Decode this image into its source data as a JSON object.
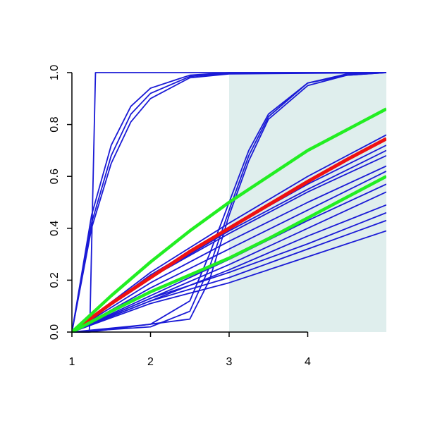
{
  "chart_data": {
    "type": "line",
    "xlim": [
      1,
      5
    ],
    "ylim": [
      0,
      1
    ],
    "xticks": [
      1,
      2,
      3,
      4
    ],
    "yticks": [
      {
        "value": 0,
        "label": "0.0"
      },
      {
        "value": 0.2,
        "label": "0.2"
      },
      {
        "value": 0.4,
        "label": "0.4"
      },
      {
        "value": 0.6,
        "label": "0.6"
      },
      {
        "value": 0.8,
        "label": "0.8"
      },
      {
        "value": 1,
        "label": "1.0"
      }
    ],
    "shaded_region": {
      "x": [
        3,
        5
      ],
      "color": "#dfeeed"
    },
    "series": [
      {
        "color": "#1a1ad6",
        "line_width": 1.8,
        "x": [
          1,
          1.22,
          1.23,
          1.3,
          5
        ],
        "values": [
          0,
          0,
          0.05,
          1,
          1
        ]
      },
      {
        "color": "#1a1ad6",
        "line_width": 1.8,
        "x": [
          1,
          1.25,
          1.5,
          1.75,
          2,
          2.5,
          3,
          5
        ],
        "values": [
          0,
          0.45,
          0.72,
          0.87,
          0.94,
          0.99,
          1,
          1
        ]
      },
      {
        "color": "#1a1ad6",
        "line_width": 1.8,
        "x": [
          1,
          1.25,
          1.5,
          1.75,
          2,
          2.5,
          3,
          5
        ],
        "values": [
          0,
          0.42,
          0.68,
          0.84,
          0.92,
          0.985,
          0.997,
          1
        ]
      },
      {
        "color": "#1a1ad6",
        "line_width": 1.8,
        "x": [
          1,
          1.25,
          1.5,
          1.75,
          2,
          2.5,
          3,
          5
        ],
        "values": [
          0,
          0.4,
          0.65,
          0.81,
          0.9,
          0.98,
          0.995,
          1
        ]
      },
      {
        "color": "#1a1ad6",
        "line_width": 1.8,
        "x": [
          1,
          2,
          2.5,
          2.75,
          3,
          3.25,
          3.5,
          4,
          4.5,
          5
        ],
        "values": [
          0,
          0.03,
          0.12,
          0.3,
          0.5,
          0.7,
          0.84,
          0.96,
          0.995,
          1
        ]
      },
      {
        "color": "#1a1ad6",
        "line_width": 1.8,
        "x": [
          1,
          2,
          2.5,
          2.75,
          3,
          3.25,
          3.5,
          4,
          4.5,
          5
        ],
        "values": [
          0,
          0.02,
          0.08,
          0.25,
          0.47,
          0.68,
          0.83,
          0.96,
          0.99,
          1
        ]
      },
      {
        "color": "#1a1ad6",
        "line_width": 1.8,
        "x": [
          1,
          1.22,
          2.5,
          2.75,
          3,
          3.25,
          3.5,
          4,
          4.5,
          5
        ],
        "values": [
          0,
          0,
          0.05,
          0.2,
          0.45,
          0.66,
          0.82,
          0.95,
          0.99,
          1
        ]
      },
      {
        "color": "#1a1ad6",
        "line_width": 1.8,
        "x": [
          1,
          2,
          3,
          4,
          5
        ],
        "values": [
          0,
          0.23,
          0.42,
          0.6,
          0.76
        ]
      },
      {
        "color": "#1a1ad6",
        "line_width": 1.8,
        "x": [
          1,
          2,
          3,
          4,
          5
        ],
        "values": [
          0,
          0.22,
          0.4,
          0.57,
          0.72
        ]
      },
      {
        "color": "#1a1ad6",
        "line_width": 1.8,
        "x": [
          1,
          2,
          3,
          4,
          5
        ],
        "values": [
          0,
          0.21,
          0.39,
          0.55,
          0.7
        ]
      },
      {
        "color": "#1a1ad6",
        "line_width": 1.8,
        "x": [
          1,
          2,
          3,
          4,
          5
        ],
        "values": [
          0,
          0.21,
          0.38,
          0.54,
          0.68
        ]
      },
      {
        "color": "#1a1ad6",
        "line_width": 1.8,
        "x": [
          1,
          2,
          3,
          4,
          5
        ],
        "values": [
          0,
          0.19,
          0.35,
          0.5,
          0.64
        ]
      },
      {
        "color": "#1a1ad6",
        "line_width": 1.8,
        "x": [
          1,
          2,
          3,
          4,
          5
        ],
        "values": [
          0,
          0.17,
          0.32,
          0.47,
          0.62
        ]
      },
      {
        "color": "#1a1ad6",
        "line_width": 1.8,
        "x": [
          1,
          2,
          3,
          4,
          5
        ],
        "values": [
          0,
          0.14,
          0.28,
          0.43,
          0.57
        ]
      },
      {
        "color": "#1a1ad6",
        "line_width": 1.8,
        "x": [
          1,
          2,
          3,
          4,
          5
        ],
        "values": [
          0,
          0.13,
          0.26,
          0.4,
          0.54
        ]
      },
      {
        "color": "#1a1ad6",
        "line_width": 1.8,
        "x": [
          1,
          2,
          3,
          4,
          5
        ],
        "values": [
          0,
          0.12,
          0.24,
          0.37,
          0.49
        ]
      },
      {
        "color": "#1a1ad6",
        "line_width": 1.8,
        "x": [
          1,
          2,
          3,
          4,
          5
        ],
        "values": [
          0,
          0.13,
          0.23,
          0.34,
          0.46
        ]
      },
      {
        "color": "#1a1ad6",
        "line_width": 1.8,
        "x": [
          1,
          2,
          3,
          4,
          5
        ],
        "values": [
          0,
          0.12,
          0.21,
          0.32,
          0.43
        ]
      },
      {
        "color": "#1a1ad6",
        "line_width": 1.8,
        "x": [
          1,
          2,
          3,
          4,
          5
        ],
        "values": [
          0,
          0.11,
          0.19,
          0.29,
          0.39
        ]
      },
      {
        "color": "#ee1111",
        "line_width": 5,
        "x": [
          1,
          1.5,
          2,
          2.5,
          3,
          3.5,
          4,
          4.5,
          5
        ],
        "values": [
          0,
          0.11,
          0.21,
          0.31,
          0.4,
          0.49,
          0.58,
          0.665,
          0.745
        ]
      },
      {
        "color": "#22ee22",
        "line_width": 4.5,
        "x": [
          1,
          1.5,
          2,
          2.5,
          3,
          3.5,
          4,
          4.5,
          5
        ],
        "values": [
          0,
          0.14,
          0.27,
          0.39,
          0.5,
          0.6,
          0.7,
          0.78,
          0.86
        ]
      },
      {
        "color": "#22ee22",
        "line_width": 4.5,
        "x": [
          1,
          1.5,
          2,
          2.5,
          3,
          3.5,
          4,
          4.5,
          5
        ],
        "values": [
          0,
          0.08,
          0.155,
          0.22,
          0.285,
          0.36,
          0.44,
          0.52,
          0.6
        ]
      }
    ]
  }
}
